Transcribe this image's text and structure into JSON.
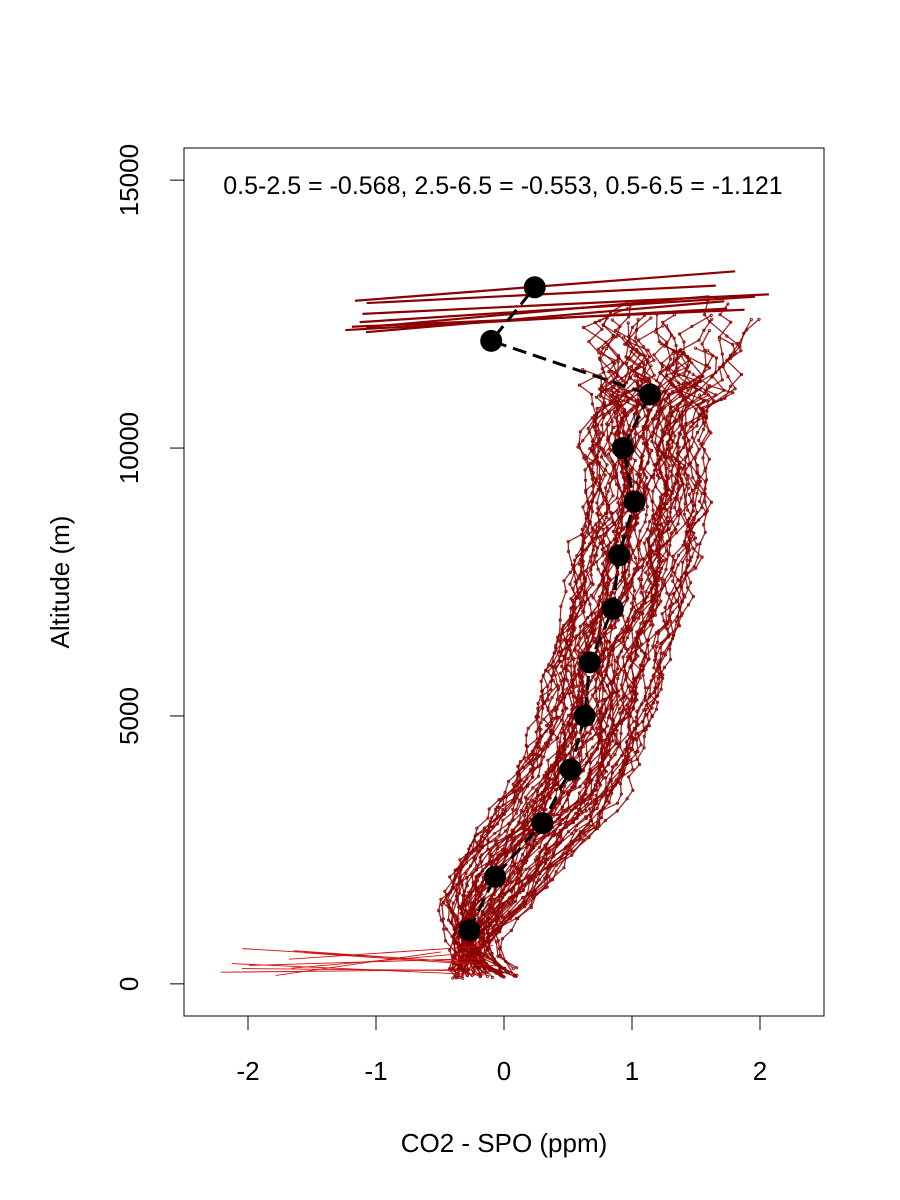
{
  "chart_data": {
    "type": "line",
    "annotation": "0.5-2.5 = -0.568, 2.5-6.5 = -0.553, 0.5-6.5 = -1.121",
    "xlabel": "CO2 - SPO (ppm)",
    "ylabel": "Altitude (m)",
    "xlim": [
      -2.5,
      2.5
    ],
    "ylim": [
      -600,
      15600
    ],
    "x_ticks": [
      -2,
      -1,
      0,
      1,
      2
    ],
    "x_tick_labels": [
      "-2",
      "-1",
      "0",
      "1",
      "2"
    ],
    "y_ticks": [
      0,
      5000,
      10000,
      15000
    ],
    "y_tick_labels": [
      "0",
      "5000",
      "10000",
      "15000"
    ],
    "grid": false,
    "profile_color": "#8b0000",
    "mean_color": "#000000",
    "series": [
      {
        "values": [
          {
            "x": -0.27,
            "y": 1000
          },
          {
            "x": -0.07,
            "y": 2000
          },
          {
            "x": 0.3,
            "y": 3000
          },
          {
            "x": 0.52,
            "y": 4000
          },
          {
            "x": 0.63,
            "y": 5000
          },
          {
            "x": 0.67,
            "y": 6000
          },
          {
            "x": 0.85,
            "y": 7000
          },
          {
            "x": 0.9,
            "y": 8000
          },
          {
            "x": 1.02,
            "y": 9000
          },
          {
            "x": 0.93,
            "y": 10000
          },
          {
            "x": 1.14,
            "y": 11000
          },
          {
            "x": -0.1,
            "y": 12000
          },
          {
            "x": 0.24,
            "y": 13000
          }
        ]
      }
    ]
  }
}
